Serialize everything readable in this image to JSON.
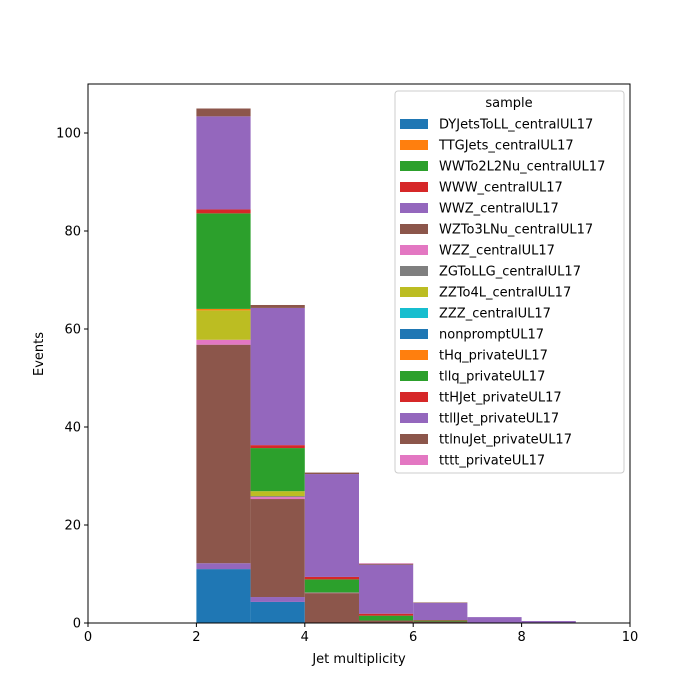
{
  "chart_data": {
    "type": "bar",
    "stacked": true,
    "histogram": true,
    "xlabel": "Jet multiplicity",
    "ylabel": "Events",
    "xlim": [
      0,
      10
    ],
    "ylim": [
      0,
      110
    ],
    "xticks": [
      0,
      2,
      4,
      6,
      8,
      10
    ],
    "yticks": [
      0,
      20,
      40,
      60,
      80,
      100
    ],
    "grid": false,
    "legend": {
      "title": "sample",
      "placement": "top-right"
    },
    "bin_edges": [
      2,
      3,
      4,
      5,
      6,
      7,
      8,
      9
    ],
    "series": [
      {
        "name": "DYJetsToLL_centralUL17",
        "color": "#1f77b4",
        "values": [
          11.0,
          4.3,
          0.0,
          0.0,
          0.0,
          0.0,
          0.0
        ]
      },
      {
        "name": "TTGJets_centralUL17",
        "color": "#ff7f0e",
        "values": [
          0.0,
          0.0,
          0.0,
          0.0,
          0.0,
          0.0,
          0.0
        ]
      },
      {
        "name": "WWTo2L2Nu_centralUL17",
        "color": "#2ca02c",
        "values": [
          0.0,
          0.0,
          0.0,
          0.0,
          0.0,
          0.0,
          0.0
        ]
      },
      {
        "name": "WWW_centralUL17",
        "color": "#d62728",
        "values": [
          0.0,
          0.0,
          0.0,
          0.0,
          0.0,
          0.0,
          0.0
        ]
      },
      {
        "name": "WWZ_centralUL17",
        "color": "#9467bd",
        "values": [
          1.2,
          1.0,
          0.1,
          0.0,
          0.0,
          0.0,
          0.0
        ]
      },
      {
        "name": "WZTo3LNu_centralUL17",
        "color": "#8c564b",
        "values": [
          44.6,
          20.0,
          6.0,
          0.5,
          0.3,
          0.0,
          0.0
        ]
      },
      {
        "name": "WZZ_centralUL17",
        "color": "#e377c2",
        "values": [
          1.0,
          0.4,
          0.1,
          0.0,
          0.0,
          0.0,
          0.0
        ]
      },
      {
        "name": "ZGToLLG_centralUL17",
        "color": "#7f7f7f",
        "values": [
          0.0,
          0.2,
          0.0,
          0.0,
          0.0,
          0.0,
          0.0
        ]
      },
      {
        "name": "ZZTo4L_centralUL17",
        "color": "#bcbd22",
        "values": [
          6.0,
          1.0,
          0.0,
          0.0,
          0.0,
          0.0,
          0.0
        ]
      },
      {
        "name": "ZZZ_centralUL17",
        "color": "#17becf",
        "values": [
          0.0,
          0.0,
          0.0,
          0.0,
          0.0,
          0.0,
          0.0
        ]
      },
      {
        "name": "nonpromptUL17",
        "color": "#1f77b4",
        "values": [
          0.0,
          0.0,
          0.0,
          0.0,
          0.0,
          0.0,
          0.0
        ]
      },
      {
        "name": "tHq_privateUL17",
        "color": "#ff7f0e",
        "values": [
          0.3,
          0.0,
          0.0,
          0.0,
          0.0,
          0.0,
          0.0
        ]
      },
      {
        "name": "tllq_privateUL17",
        "color": "#2ca02c",
        "values": [
          19.5,
          8.8,
          2.7,
          1.0,
          0.2,
          0.0,
          0.0
        ]
      },
      {
        "name": "ttHJet_privateUL17",
        "color": "#d62728",
        "values": [
          0.8,
          0.6,
          0.5,
          0.4,
          0.1,
          0.0,
          0.0
        ]
      },
      {
        "name": "ttllJet_privateUL17",
        "color": "#9467bd",
        "values": [
          19.0,
          28.0,
          21.0,
          10.0,
          3.5,
          1.2,
          0.4
        ]
      },
      {
        "name": "ttlnuJet_privateUL17",
        "color": "#8c564b",
        "values": [
          1.6,
          0.6,
          0.3,
          0.2,
          0.1,
          0.0,
          0.0
        ]
      },
      {
        "name": "tttt_privateUL17",
        "color": "#e377c2",
        "values": [
          0.0,
          0.0,
          0.0,
          0.1,
          0.0,
          0.0,
          0.0
        ]
      }
    ]
  }
}
